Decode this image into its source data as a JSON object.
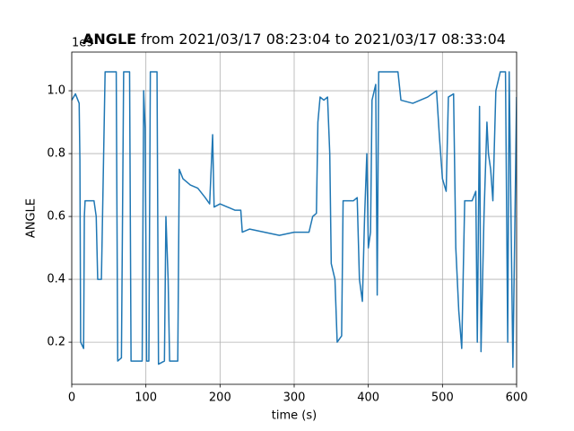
{
  "chart_data": {
    "type": "line",
    "title_bold": "ANGLE",
    "title": "from 2021/03/17 08:23:04 to 2021/03/17 08:33:04",
    "x_label": "time (s)",
    "y_label": "ANGLE",
    "y_offset_label": "1e9",
    "x": [
      0,
      5,
      10,
      11,
      12,
      16,
      17,
      18,
      30,
      33,
      35,
      40,
      45,
      60,
      62,
      67,
      70,
      78,
      80,
      95,
      97,
      99,
      101,
      104,
      106,
      115,
      117,
      125,
      127,
      130,
      132,
      143,
      145,
      150,
      160,
      170,
      180,
      186,
      190,
      192,
      200,
      210,
      220,
      228,
      230,
      240,
      260,
      280,
      300,
      320,
      325,
      330,
      332,
      335,
      340,
      345,
      348,
      350,
      355,
      358,
      364,
      366,
      380,
      385,
      388,
      392,
      395,
      398,
      400,
      403,
      405,
      410,
      412,
      414,
      440,
      444,
      460,
      480,
      492,
      496,
      500,
      505,
      508,
      515,
      518,
      522,
      526,
      530,
      540,
      545,
      547,
      550,
      552,
      556,
      560,
      562,
      565,
      568,
      572,
      578,
      585,
      588,
      590,
      595,
      600
    ],
    "series": [
      {
        "name": "ANGLE",
        "color": "#1f77b4",
        "values": [
          0.97,
          0.99,
          0.96,
          0.78,
          0.2,
          0.18,
          0.6,
          0.65,
          0.65,
          0.6,
          0.4,
          0.4,
          1.06,
          1.06,
          0.14,
          0.15,
          1.06,
          1.06,
          0.14,
          0.14,
          1.0,
          0.88,
          0.14,
          0.14,
          1.06,
          1.06,
          0.13,
          0.14,
          0.6,
          0.4,
          0.14,
          0.14,
          0.75,
          0.72,
          0.7,
          0.69,
          0.66,
          0.64,
          0.86,
          0.63,
          0.64,
          0.63,
          0.62,
          0.62,
          0.55,
          0.56,
          0.55,
          0.54,
          0.55,
          0.55,
          0.6,
          0.61,
          0.9,
          0.98,
          0.97,
          0.98,
          0.8,
          0.45,
          0.4,
          0.2,
          0.22,
          0.65,
          0.65,
          0.66,
          0.4,
          0.33,
          0.6,
          0.8,
          0.5,
          0.55,
          0.97,
          1.02,
          0.35,
          1.06,
          1.06,
          0.97,
          0.96,
          0.98,
          1.0,
          0.85,
          0.72,
          0.68,
          0.98,
          0.99,
          0.5,
          0.3,
          0.18,
          0.65,
          0.65,
          0.68,
          0.2,
          0.95,
          0.17,
          0.6,
          0.9,
          0.8,
          0.75,
          0.65,
          1.0,
          1.06,
          1.06,
          0.2,
          1.06,
          0.12,
          0.98
        ]
      }
    ],
    "xlim": [
      0,
      600
    ],
    "xticks": [
      0,
      100,
      200,
      300,
      400,
      500,
      600
    ],
    "ylim": [
      0.066,
      1.123
    ],
    "yticks": [
      0.2,
      0.4,
      0.6,
      0.8,
      {
        "value": 1.0,
        "label": "1.0"
      }
    ],
    "grid": true
  }
}
